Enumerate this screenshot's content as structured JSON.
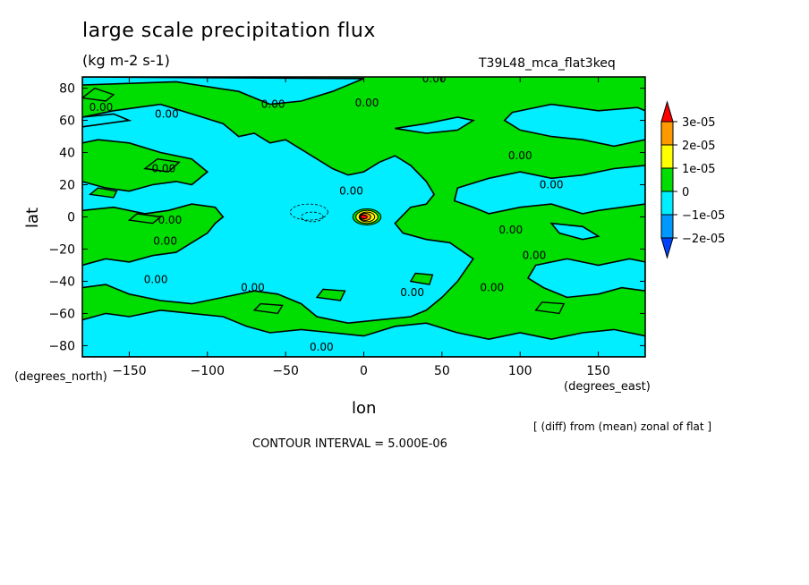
{
  "chart": {
    "title": "large scale precipitation flux",
    "units": "(kg m-2 s-1)",
    "run_label": "T39L48_mca_flat3keq",
    "x_label": "lon",
    "y_label": "lat",
    "x_units": "(degrees_east)",
    "y_units": "(degrees_north)",
    "diff_note": "[ (diff) from (mean) zonal of flat ]",
    "contour_interval": "CONTOUR INTERVAL = 5.000E-06"
  },
  "chart_data": {
    "type": "heatmap",
    "title": "large scale precipitation flux",
    "xlabel": "lon",
    "ylabel": "lat",
    "xlim": [
      -180,
      180
    ],
    "ylim": [
      -87,
      87
    ],
    "x_ticks": [
      -150,
      -100,
      -50,
      0,
      50,
      100,
      150
    ],
    "y_ticks": [
      80,
      60,
      40,
      20,
      0,
      -20,
      -40,
      -60,
      -80
    ],
    "colorbar": {
      "labels": [
        "3e-05",
        "2e-05",
        "1e-05",
        "0",
        "−1e-05",
        "−2e-05"
      ],
      "colors": [
        "#ff0000",
        "#ff9900",
        "#ffff00",
        "#00dd00",
        "#00eeff",
        "#0099ff",
        "#0044ff"
      ]
    },
    "background_color": "#00dd00",
    "negative_regions": [
      {
        "points": [
          [
            -180,
            82
          ],
          [
            -120,
            84
          ],
          [
            -80,
            78
          ],
          [
            -60,
            70
          ],
          [
            -40,
            72
          ],
          [
            -20,
            78
          ],
          [
            0,
            86
          ],
          [
            -180,
            87
          ]
        ]
      },
      {
        "points": [
          [
            -180,
            62
          ],
          [
            -160,
            66
          ],
          [
            -130,
            70
          ],
          [
            -110,
            64
          ],
          [
            -90,
            58
          ],
          [
            -80,
            50
          ],
          [
            -70,
            52
          ],
          [
            -60,
            46
          ],
          [
            -50,
            48
          ],
          [
            -40,
            42
          ],
          [
            -30,
            36
          ],
          [
            -20,
            30
          ],
          [
            -10,
            26
          ],
          [
            0,
            28
          ],
          [
            10,
            34
          ],
          [
            20,
            38
          ],
          [
            30,
            32
          ],
          [
            40,
            22
          ],
          [
            45,
            14
          ],
          [
            40,
            8
          ],
          [
            30,
            6
          ],
          [
            20,
            -4
          ],
          [
            25,
            -10
          ],
          [
            40,
            -14
          ],
          [
            55,
            -16
          ],
          [
            70,
            -26
          ],
          [
            60,
            -40
          ],
          [
            50,
            -50
          ],
          [
            40,
            -58
          ],
          [
            30,
            -62
          ],
          [
            10,
            -64
          ],
          [
            -10,
            -66
          ],
          [
            -30,
            -62
          ],
          [
            -40,
            -54
          ],
          [
            -55,
            -48
          ],
          [
            -70,
            -46
          ],
          [
            -90,
            -50
          ],
          [
            -110,
            -54
          ],
          [
            -130,
            -52
          ],
          [
            -150,
            -48
          ],
          [
            -165,
            -42
          ],
          [
            -180,
            -44
          ],
          [
            -180,
            -30
          ],
          [
            -165,
            -26
          ],
          [
            -150,
            -28
          ],
          [
            -135,
            -24
          ],
          [
            -120,
            -22
          ],
          [
            -110,
            -16
          ],
          [
            -100,
            -10
          ],
          [
            -95,
            -4
          ],
          [
            -90,
            0
          ],
          [
            -95,
            6
          ],
          [
            -110,
            8
          ],
          [
            -125,
            4
          ],
          [
            -140,
            2
          ],
          [
            -160,
            6
          ],
          [
            -180,
            4
          ],
          [
            -180,
            22
          ],
          [
            -165,
            18
          ],
          [
            -150,
            16
          ],
          [
            -135,
            20
          ],
          [
            -120,
            22
          ],
          [
            -110,
            20
          ],
          [
            -100,
            28
          ],
          [
            -110,
            36
          ],
          [
            -130,
            40
          ],
          [
            -150,
            46
          ],
          [
            -170,
            48
          ],
          [
            -180,
            46
          ]
        ]
      },
      {
        "points": [
          [
            -180,
            56
          ],
          [
            -165,
            58
          ],
          [
            -150,
            60
          ],
          [
            -160,
            64
          ],
          [
            -180,
            62
          ]
        ]
      },
      {
        "points": [
          [
            20,
            55
          ],
          [
            40,
            58
          ],
          [
            60,
            62
          ],
          [
            70,
            60
          ],
          [
            60,
            54
          ],
          [
            40,
            52
          ]
        ]
      },
      {
        "points": [
          [
            95,
            65
          ],
          [
            120,
            70
          ],
          [
            150,
            66
          ],
          [
            175,
            68
          ],
          [
            180,
            66
          ],
          [
            180,
            48
          ],
          [
            160,
            44
          ],
          [
            140,
            48
          ],
          [
            120,
            50
          ],
          [
            100,
            54
          ],
          [
            90,
            60
          ]
        ]
      },
      {
        "points": [
          [
            60,
            18
          ],
          [
            80,
            24
          ],
          [
            100,
            28
          ],
          [
            120,
            24
          ],
          [
            140,
            26
          ],
          [
            160,
            30
          ],
          [
            180,
            32
          ],
          [
            180,
            8
          ],
          [
            165,
            6
          ],
          [
            150,
            4
          ],
          [
            140,
            2
          ],
          [
            120,
            8
          ],
          [
            100,
            6
          ],
          [
            80,
            2
          ],
          [
            70,
            6
          ],
          [
            58,
            10
          ]
        ]
      },
      {
        "points": [
          [
            120,
            -4
          ],
          [
            140,
            -6
          ],
          [
            150,
            -12
          ],
          [
            140,
            -14
          ],
          [
            125,
            -10
          ]
        ]
      },
      {
        "points": [
          [
            110,
            -30
          ],
          [
            130,
            -26
          ],
          [
            150,
            -30
          ],
          [
            170,
            -26
          ],
          [
            180,
            -28
          ],
          [
            180,
            -46
          ],
          [
            165,
            -44
          ],
          [
            150,
            -48
          ],
          [
            130,
            -50
          ],
          [
            115,
            -44
          ],
          [
            105,
            -38
          ]
        ]
      },
      {
        "points": [
          [
            -180,
            -64
          ],
          [
            -165,
            -60
          ],
          [
            -150,
            -62
          ],
          [
            -130,
            -58
          ],
          [
            -110,
            -60
          ],
          [
            -90,
            -62
          ],
          [
            -75,
            -68
          ],
          [
            -60,
            -72
          ],
          [
            -40,
            -70
          ],
          [
            -20,
            -72
          ],
          [
            0,
            -74
          ],
          [
            20,
            -68
          ],
          [
            40,
            -66
          ],
          [
            60,
            -72
          ],
          [
            80,
            -76
          ],
          [
            100,
            -72
          ],
          [
            120,
            -76
          ],
          [
            140,
            -72
          ],
          [
            160,
            -70
          ],
          [
            180,
            -74
          ],
          [
            180,
            -87
          ],
          [
            -180,
            -87
          ]
        ]
      }
    ],
    "positive_patches": [
      {
        "points": [
          [
            -180,
            74
          ],
          [
            -165,
            72
          ],
          [
            -160,
            76
          ],
          [
            -172,
            80
          ]
        ]
      },
      {
        "points": [
          [
            -140,
            30
          ],
          [
            -125,
            28
          ],
          [
            -118,
            34
          ],
          [
            -132,
            36
          ]
        ]
      },
      {
        "points": [
          [
            -175,
            14
          ],
          [
            -160,
            12
          ],
          [
            -158,
            16
          ],
          [
            -170,
            18
          ]
        ]
      },
      {
        "points": [
          [
            -150,
            -2
          ],
          [
            -135,
            -4
          ],
          [
            -130,
            0
          ],
          [
            -145,
            2
          ]
        ]
      },
      {
        "points": [
          [
            -70,
            -58
          ],
          [
            -55,
            -60
          ],
          [
            -52,
            -55
          ],
          [
            -66,
            -54
          ]
        ]
      },
      {
        "points": [
          [
            -30,
            -50
          ],
          [
            -15,
            -52
          ],
          [
            -12,
            -46
          ],
          [
            -26,
            -45
          ]
        ]
      },
      {
        "points": [
          [
            110,
            -58
          ],
          [
            125,
            -60
          ],
          [
            128,
            -54
          ],
          [
            114,
            -53
          ]
        ]
      },
      {
        "points": [
          [
            30,
            -40
          ],
          [
            42,
            -42
          ],
          [
            44,
            -36
          ],
          [
            33,
            -35
          ]
        ]
      }
    ],
    "peak_contours": [
      {
        "level": "1e-05",
        "cx": 2,
        "cy": 0,
        "rx": 9,
        "ry": 5
      },
      {
        "level": "1.5e-05",
        "cx": 2,
        "cy": 0,
        "rx": 7,
        "ry": 4
      },
      {
        "level": "2e-05",
        "cx": 2,
        "cy": 0,
        "rx": 5,
        "ry": 3
      },
      {
        "level": "2.5e-05",
        "cx": 1,
        "cy": 0,
        "rx": 3.5,
        "ry": 2.2
      },
      {
        "level": "3e-05",
        "cx": 0,
        "cy": 0,
        "rx": 2.2,
        "ry": 1.2
      }
    ],
    "contour_labels": [
      {
        "text": "0.00",
        "x": 45,
        "y": 86
      },
      {
        "text": "0.00",
        "x": -168,
        "y": 68
      },
      {
        "text": "0.00",
        "x": -126,
        "y": 64
      },
      {
        "text": "0.00",
        "x": -58,
        "y": 70
      },
      {
        "text": "0.00",
        "x": 2,
        "y": 71
      },
      {
        "text": "0.00",
        "x": 100,
        "y": 38
      },
      {
        "text": "0.00",
        "x": -128,
        "y": 30
      },
      {
        "text": "0.00",
        "x": 120,
        "y": 20
      },
      {
        "text": "0.00",
        "x": -8,
        "y": 16
      },
      {
        "text": "0.00",
        "x": -124,
        "y": -2
      },
      {
        "text": "0.00",
        "x": 94,
        "y": -8
      },
      {
        "text": "0.00",
        "x": -127,
        "y": -15
      },
      {
        "text": "0.00",
        "x": 109,
        "y": -24
      },
      {
        "text": "0.00",
        "x": -133,
        "y": -39
      },
      {
        "text": "0.00",
        "x": -71,
        "y": -44
      },
      {
        "text": "0.00",
        "x": 31,
        "y": -47
      },
      {
        "text": "0.00",
        "x": 82,
        "y": -44
      },
      {
        "text": "0.00",
        "x": -27,
        "y": -81
      }
    ]
  }
}
